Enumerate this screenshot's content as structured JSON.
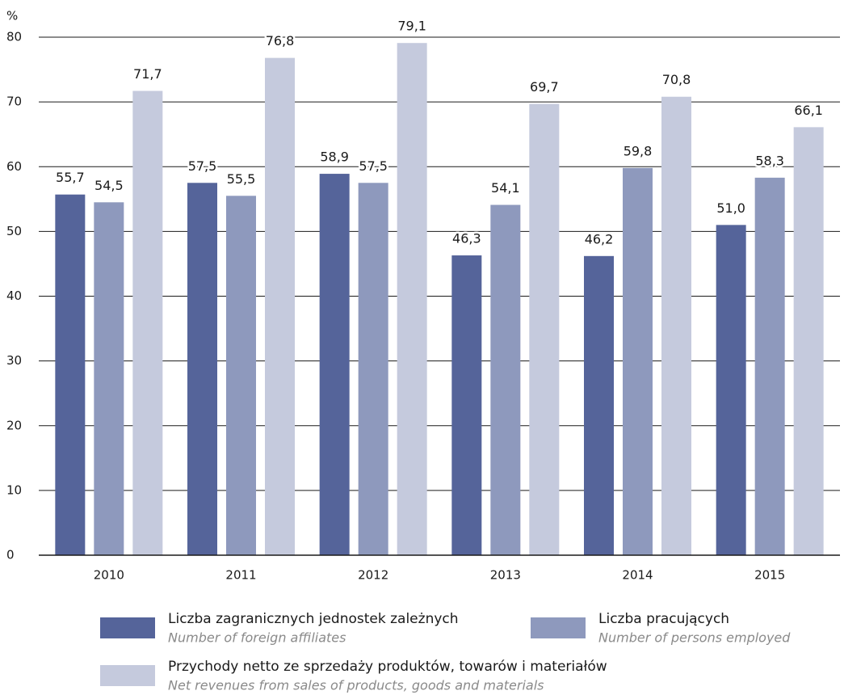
{
  "chart_data": {
    "type": "bar",
    "y_unit": "%",
    "categories": [
      "2010",
      "2011",
      "2012",
      "2013",
      "2014",
      "2015"
    ],
    "series": [
      {
        "name": "Liczba zagranicznych jednostek zależnych",
        "name_en": "Number of foreign affiliates",
        "color": "#55649a",
        "values": [
          55.7,
          57.5,
          58.9,
          46.3,
          46.2,
          51.0
        ],
        "value_labels": [
          "55,7",
          "57,5",
          "58,9",
          "46,3",
          "46,2",
          "51,0"
        ]
      },
      {
        "name": "Liczba pracujących",
        "name_en": "Number of persons employed",
        "color": "#8e99bd",
        "values": [
          54.5,
          55.5,
          57.5,
          54.1,
          59.8,
          58.3
        ],
        "value_labels": [
          "54,5",
          "55,5",
          "57,5",
          "54,1",
          "59,8",
          "58,3"
        ]
      },
      {
        "name": "Przychody netto ze sprzedaży produktów, towarów i materiałów",
        "name_en": "Net revenues from sales of products, goods and materials",
        "color": "#c5cadd",
        "values": [
          71.7,
          76.8,
          79.1,
          69.7,
          70.8,
          66.1
        ],
        "value_labels": [
          "71,7",
          "76,8",
          "79,1",
          "69,7",
          "70,8",
          "66,1"
        ]
      }
    ],
    "ylim": [
      0,
      80
    ],
    "yticks": [
      0,
      10,
      20,
      30,
      40,
      50,
      60,
      70,
      80
    ],
    "grid": true
  }
}
